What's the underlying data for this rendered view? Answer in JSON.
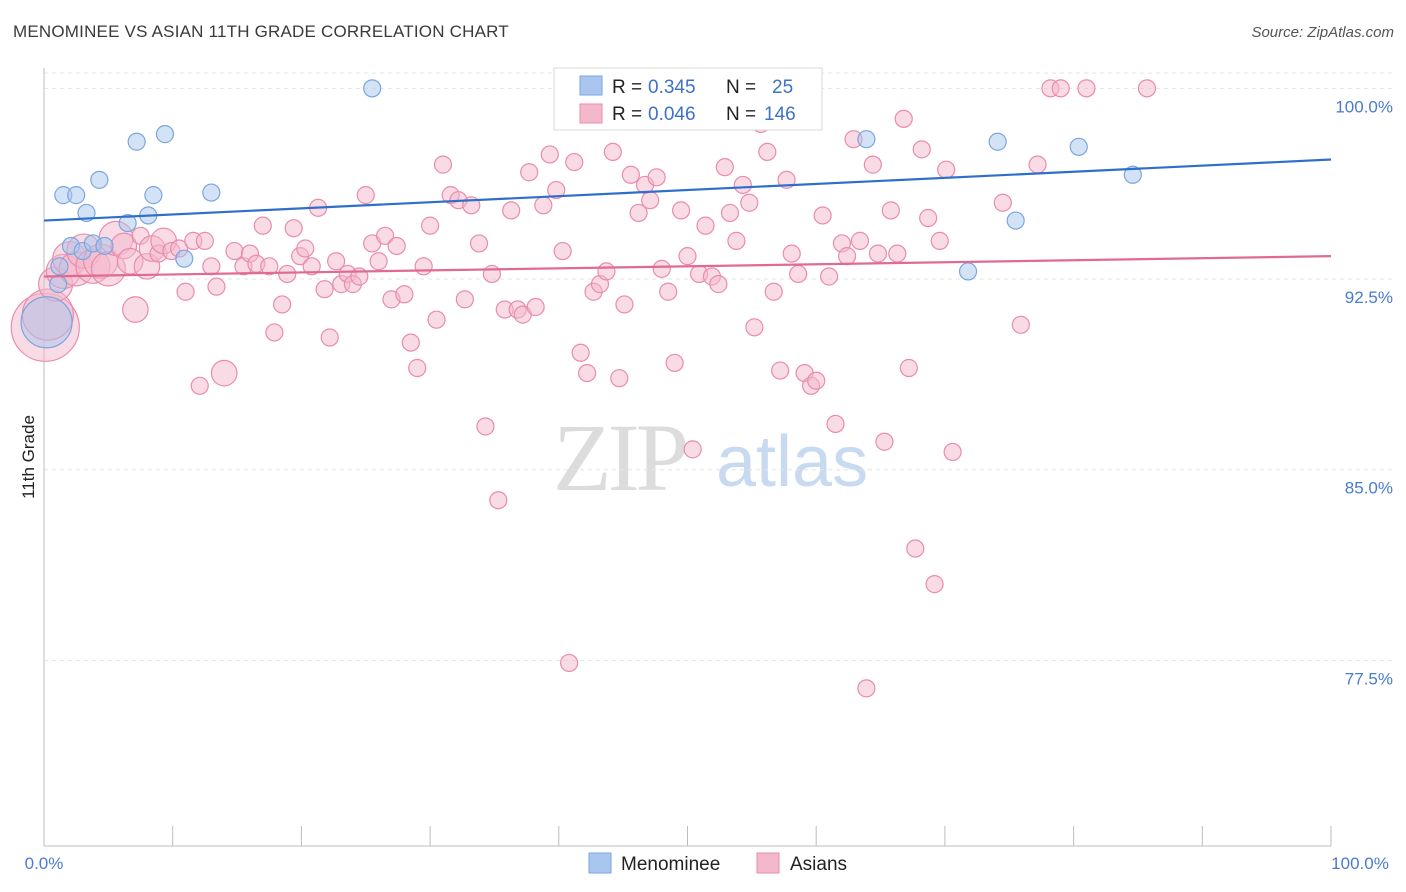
{
  "title": "MENOMINEE VS ASIAN 11TH GRADE CORRELATION CHART",
  "source": "Source: ZipAtlas.com",
  "watermark": {
    "part1": "ZIP",
    "part2": "atlas"
  },
  "legend": {
    "rows": [
      {
        "r_label": "R =",
        "r_value": "0.345",
        "n_label": "N =",
        "n_value": "25",
        "color": "#a9c6ee"
      },
      {
        "r_label": "R =",
        "r_value": "0.046",
        "n_label": "N =",
        "n_value": "146",
        "color": "#f4b8cb"
      }
    ]
  },
  "bottom_legend": [
    {
      "label": "Menominee",
      "color": "#a9c6ee"
    },
    {
      "label": "Asians",
      "color": "#f4b8cb"
    }
  ],
  "chart_data": {
    "type": "scatter",
    "xlabel": "",
    "ylabel": "11th Grade",
    "xlim": [
      0,
      100
    ],
    "ylim": [
      70.2,
      100.8
    ],
    "x_tick_labels": [
      "0.0%",
      "100.0%"
    ],
    "y_ticks": [
      77.5,
      85.0,
      92.5,
      100.0
    ],
    "y_tick_labels": [
      "77.5%",
      "85.0%",
      "92.5%",
      "100.0%"
    ],
    "grid": true,
    "legend_position": "top-center",
    "series": [
      {
        "name": "Menominee",
        "color": "#a9c6ee",
        "stroke": "#7aa6e0",
        "trend_color": "#2f6fcc",
        "trend": [
          [
            0,
            94.8
          ],
          [
            100,
            97.2
          ]
        ],
        "points": [
          [
            0.2,
            90.8,
            3
          ],
          [
            1.1,
            92.3,
            1
          ],
          [
            1.2,
            93.0,
            1
          ],
          [
            1.5,
            95.8,
            1
          ],
          [
            2.1,
            93.8,
            1
          ],
          [
            2.5,
            95.8,
            1
          ],
          [
            3.0,
            93.6,
            1
          ],
          [
            3.3,
            95.1,
            1
          ],
          [
            3.8,
            93.9,
            1
          ],
          [
            4.3,
            96.4,
            1
          ],
          [
            4.7,
            93.8,
            1
          ],
          [
            6.5,
            94.7,
            1
          ],
          [
            7.2,
            97.9,
            1
          ],
          [
            8.1,
            95.0,
            1
          ],
          [
            8.5,
            95.8,
            1
          ],
          [
            9.4,
            98.2,
            1
          ],
          [
            10.9,
            93.3,
            1
          ],
          [
            13.0,
            95.9,
            1
          ],
          [
            25.5,
            100.0,
            1
          ],
          [
            63.9,
            98.0,
            1
          ],
          [
            71.8,
            92.8,
            1
          ],
          [
            74.1,
            97.9,
            1
          ],
          [
            75.5,
            94.8,
            1
          ],
          [
            80.4,
            97.7,
            1
          ],
          [
            84.6,
            96.6,
            1
          ]
        ]
      },
      {
        "name": "Asians",
        "color": "#f4b8cb",
        "stroke": "#e98cab",
        "trend_color": "#e06a92",
        "trend": [
          [
            0,
            92.6
          ],
          [
            100,
            93.4
          ]
        ],
        "points": [
          [
            0.1,
            90.6,
            4
          ],
          [
            0.3,
            91.1,
            3
          ],
          [
            0.9,
            92.3,
            2
          ],
          [
            1.5,
            92.8,
            2
          ],
          [
            2.0,
            93.3,
            2
          ],
          [
            2.5,
            92.9,
            2
          ],
          [
            3.1,
            93.6,
            2
          ],
          [
            3.8,
            93.0,
            2
          ],
          [
            4.4,
            93.2,
            2
          ],
          [
            5.0,
            92.9,
            2
          ],
          [
            5.6,
            94.1,
            2
          ],
          [
            6.2,
            93.8,
            1.5
          ],
          [
            6.7,
            93.2,
            1.5
          ],
          [
            7.1,
            91.3,
            1.5
          ],
          [
            7.5,
            94.2,
            1
          ],
          [
            8.0,
            93.0,
            1.5
          ],
          [
            8.4,
            93.7,
            1.5
          ],
          [
            8.9,
            93.5,
            1
          ],
          [
            9.3,
            94.0,
            1.5
          ],
          [
            9.9,
            93.6,
            1
          ],
          [
            10.5,
            93.7,
            1
          ],
          [
            11.0,
            92.0,
            1
          ],
          [
            11.6,
            94.0,
            1
          ],
          [
            12.1,
            88.3,
            1
          ],
          [
            12.5,
            94.0,
            1
          ],
          [
            13.0,
            93.0,
            1
          ],
          [
            13.4,
            92.2,
            1
          ],
          [
            14.0,
            88.8,
            1.5
          ],
          [
            14.8,
            93.6,
            1
          ],
          [
            15.5,
            93.0,
            1
          ],
          [
            16.0,
            93.5,
            1
          ],
          [
            16.5,
            93.1,
            1
          ],
          [
            17.0,
            94.6,
            1
          ],
          [
            17.5,
            93.0,
            1
          ],
          [
            17.9,
            90.4,
            1
          ],
          [
            18.5,
            91.5,
            1
          ],
          [
            18.9,
            92.7,
            1
          ],
          [
            19.4,
            94.5,
            1
          ],
          [
            19.9,
            93.4,
            1
          ],
          [
            20.3,
            93.7,
            1
          ],
          [
            20.8,
            93.0,
            1
          ],
          [
            21.3,
            95.3,
            1
          ],
          [
            21.8,
            92.1,
            1
          ],
          [
            22.2,
            90.2,
            1
          ],
          [
            22.7,
            93.2,
            1
          ],
          [
            23.1,
            92.3,
            1
          ],
          [
            23.6,
            92.7,
            1
          ],
          [
            24.0,
            92.3,
            1
          ],
          [
            24.5,
            92.6,
            1
          ],
          [
            25.0,
            95.8,
            1
          ],
          [
            25.5,
            93.9,
            1
          ],
          [
            26.0,
            93.2,
            1
          ],
          [
            26.5,
            94.2,
            1
          ],
          [
            27.0,
            91.7,
            1
          ],
          [
            27.4,
            93.8,
            1
          ],
          [
            28.0,
            91.9,
            1
          ],
          [
            28.5,
            90.0,
            1
          ],
          [
            29.0,
            89.0,
            1
          ],
          [
            29.5,
            93.0,
            1
          ],
          [
            30.0,
            94.6,
            1
          ],
          [
            30.5,
            90.9,
            1
          ],
          [
            31.0,
            97.0,
            1
          ],
          [
            31.6,
            95.8,
            1
          ],
          [
            32.2,
            95.6,
            1
          ],
          [
            32.7,
            91.7,
            1
          ],
          [
            33.2,
            95.4,
            1
          ],
          [
            33.8,
            93.9,
            1
          ],
          [
            34.3,
            86.7,
            1
          ],
          [
            34.8,
            92.7,
            1
          ],
          [
            35.3,
            83.8,
            1
          ],
          [
            35.8,
            91.3,
            1
          ],
          [
            36.3,
            95.2,
            1
          ],
          [
            36.8,
            91.3,
            1
          ],
          [
            37.2,
            91.1,
            1
          ],
          [
            37.7,
            96.7,
            1
          ],
          [
            38.2,
            91.4,
            1
          ],
          [
            38.8,
            95.4,
            1
          ],
          [
            39.3,
            97.4,
            1
          ],
          [
            39.8,
            96.0,
            1
          ],
          [
            40.3,
            93.6,
            1
          ],
          [
            40.8,
            77.4,
            1
          ],
          [
            41.2,
            97.1,
            1
          ],
          [
            41.7,
            89.6,
            1
          ],
          [
            42.2,
            88.8,
            1
          ],
          [
            42.7,
            92.0,
            1
          ],
          [
            43.2,
            92.3,
            1
          ],
          [
            43.7,
            92.8,
            1
          ],
          [
            44.2,
            97.5,
            1
          ],
          [
            44.7,
            88.6,
            1
          ],
          [
            45.1,
            91.5,
            1
          ],
          [
            45.6,
            96.6,
            1
          ],
          [
            46.2,
            95.1,
            1
          ],
          [
            46.7,
            96.2,
            1
          ],
          [
            47.1,
            95.6,
            1
          ],
          [
            47.6,
            96.5,
            1
          ],
          [
            48.0,
            92.9,
            1
          ],
          [
            48.5,
            92.0,
            1
          ],
          [
            49.0,
            89.2,
            1
          ],
          [
            49.5,
            95.2,
            1
          ],
          [
            50.0,
            93.4,
            1
          ],
          [
            50.4,
            85.8,
            1
          ],
          [
            50.9,
            92.7,
            1
          ],
          [
            51.4,
            94.6,
            1
          ],
          [
            51.9,
            92.6,
            1
          ],
          [
            52.4,
            92.3,
            1
          ],
          [
            52.9,
            96.9,
            1
          ],
          [
            53.3,
            95.1,
            1
          ],
          [
            53.8,
            94.0,
            1
          ],
          [
            54.3,
            96.2,
            1
          ],
          [
            54.8,
            95.5,
            1
          ],
          [
            55.2,
            90.6,
            1
          ],
          [
            55.7,
            98.6,
            1
          ],
          [
            56.2,
            97.5,
            1
          ],
          [
            56.7,
            92.0,
            1
          ],
          [
            57.2,
            88.9,
            1
          ],
          [
            57.7,
            96.4,
            1
          ],
          [
            58.1,
            93.5,
            1
          ],
          [
            58.6,
            92.7,
            1
          ],
          [
            59.1,
            88.8,
            1
          ],
          [
            59.6,
            88.3,
            1
          ],
          [
            60.0,
            88.5,
            1
          ],
          [
            60.5,
            95.0,
            1
          ],
          [
            61.0,
            92.6,
            1
          ],
          [
            61.5,
            86.8,
            1
          ],
          [
            62.0,
            93.9,
            1
          ],
          [
            62.4,
            93.4,
            1
          ],
          [
            62.9,
            98.0,
            1
          ],
          [
            63.4,
            94.0,
            1
          ],
          [
            63.9,
            76.4,
            1
          ],
          [
            64.4,
            97.0,
            1
          ],
          [
            64.8,
            93.5,
            1
          ],
          [
            65.3,
            86.1,
            1
          ],
          [
            65.8,
            95.2,
            1
          ],
          [
            66.3,
            93.5,
            1
          ],
          [
            66.8,
            98.8,
            1
          ],
          [
            67.2,
            89.0,
            1
          ],
          [
            67.7,
            81.9,
            1
          ],
          [
            68.2,
            97.6,
            1
          ],
          [
            68.7,
            94.9,
            1
          ],
          [
            69.2,
            80.5,
            1
          ],
          [
            69.6,
            94.0,
            1
          ],
          [
            70.1,
            96.8,
            1
          ],
          [
            70.6,
            85.7,
            1
          ],
          [
            74.5,
            95.5,
            1
          ],
          [
            75.9,
            90.7,
            1
          ],
          [
            77.2,
            97.0,
            1
          ],
          [
            78.2,
            100.0,
            1
          ],
          [
            79.0,
            100.0,
            1
          ],
          [
            81.0,
            100.0,
            1
          ],
          [
            85.7,
            100.0,
            1
          ]
        ]
      }
    ]
  }
}
